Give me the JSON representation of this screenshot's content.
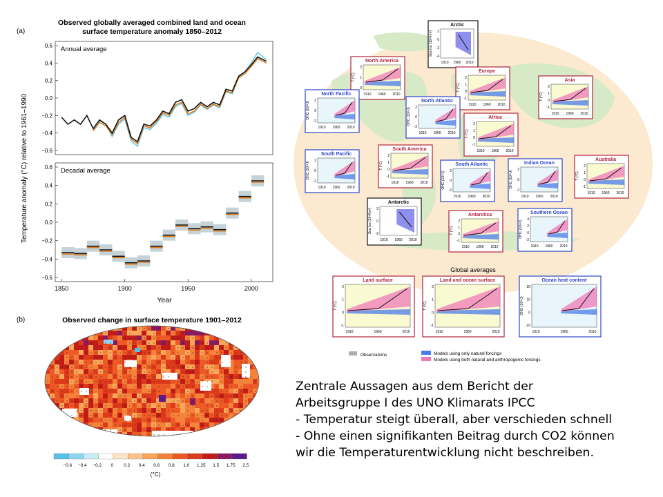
{
  "chart_data": [
    {
      "type": "line",
      "panel_label": "(a)",
      "title": "Observed globally averaged combined land and ocean surface temperature anomaly 1850–2012",
      "subpanels": [
        {
          "label": "Annual average",
          "ylim": [
            -0.6,
            0.6
          ],
          "series": [
            {
              "color": "#111111",
              "x": [
                1850,
                1855,
                1860,
                1865,
                1870,
                1875,
                1880,
                1885,
                1890,
                1895,
                1900,
                1905,
                1910,
                1915,
                1920,
                1925,
                1930,
                1935,
                1940,
                1945,
                1950,
                1955,
                1960,
                1965,
                1970,
                1975,
                1980,
                1985,
                1990,
                1995,
                2000,
                2005,
                2012
              ],
              "values": [
                -0.22,
                -0.3,
                -0.25,
                -0.3,
                -0.2,
                -0.35,
                -0.25,
                -0.3,
                -0.4,
                -0.25,
                -0.2,
                -0.45,
                -0.5,
                -0.3,
                -0.32,
                -0.25,
                -0.15,
                -0.18,
                -0.05,
                -0.02,
                -0.15,
                -0.12,
                -0.05,
                -0.1,
                -0.05,
                -0.08,
                0.1,
                0.08,
                0.25,
                0.3,
                0.38,
                0.47,
                0.42
              ]
            },
            {
              "color": "#e07b1a",
              "x": [
                1850,
                1855,
                1860,
                1865,
                1870,
                1875,
                1880,
                1885,
                1890,
                1895,
                1900,
                1905,
                1910,
                1915,
                1920,
                1925,
                1930,
                1935,
                1940,
                1945,
                1950,
                1955,
                1960,
                1965,
                1970,
                1975,
                1980,
                1985,
                1990,
                1995,
                2000,
                2005,
                2012
              ],
              "values": [
                null,
                null,
                null,
                null,
                null,
                -0.38,
                -0.28,
                -0.32,
                -0.42,
                -0.28,
                -0.22,
                -0.47,
                -0.52,
                -0.32,
                -0.34,
                -0.27,
                -0.17,
                -0.2,
                -0.08,
                -0.05,
                -0.18,
                -0.15,
                -0.07,
                -0.12,
                -0.07,
                -0.1,
                0.08,
                0.06,
                0.23,
                0.28,
                0.36,
                0.45,
                0.4
              ]
            },
            {
              "color": "#5bc8e8",
              "x": [
                1850,
                1855,
                1860,
                1865,
                1870,
                1875,
                1880,
                1885,
                1890,
                1895,
                1900,
                1905,
                1910,
                1915,
                1920,
                1925,
                1930,
                1935,
                1940,
                1945,
                1950,
                1955,
                1960,
                1965,
                1970,
                1975,
                1980,
                1985,
                1990,
                1995,
                2000,
                2005,
                2012
              ],
              "values": [
                null,
                null,
                null,
                null,
                null,
                -0.36,
                -0.26,
                -0.3,
                -0.44,
                -0.3,
                -0.24,
                -0.49,
                -0.55,
                -0.34,
                -0.36,
                -0.29,
                -0.19,
                -0.22,
                -0.1,
                -0.06,
                -0.2,
                -0.16,
                -0.08,
                -0.13,
                -0.08,
                -0.11,
                0.07,
                0.05,
                0.24,
                0.3,
                0.4,
                0.52,
                0.44
              ]
            }
          ]
        },
        {
          "label": "Decadal average",
          "ylim": [
            -0.6,
            0.6
          ],
          "decades": [
            1855,
            1865,
            1875,
            1885,
            1895,
            1905,
            1915,
            1925,
            1935,
            1945,
            1955,
            1965,
            1975,
            1985,
            1995,
            2005
          ],
          "values": [
            -0.33,
            -0.34,
            -0.26,
            -0.3,
            -0.37,
            -0.44,
            -0.42,
            -0.26,
            -0.14,
            -0.03,
            -0.07,
            -0.05,
            -0.08,
            0.1,
            0.28,
            0.45
          ]
        }
      ],
      "xticks": [
        1850,
        1900,
        1950,
        2000
      ],
      "yticks": [
        "0.6",
        "0.4",
        "0.2",
        "0.0",
        "−0.2",
        "−0.4",
        "−0.6"
      ],
      "xlabel": "Year",
      "ylabel": "Temperature anomaly (°C) relative to 1961–1990"
    },
    {
      "type": "heatmap",
      "panel_label": "(b)",
      "title": "Observed change in surface temperature 1901–2012",
      "colorbar_ticks": [
        "−0.6",
        "−0.4",
        "−0.2",
        "0",
        "0.2",
        "0.4",
        "0.6",
        "0.8",
        "1.0",
        "1.25",
        "1.5",
        "1.75",
        "2.5"
      ],
      "colorbar_colors": [
        "#55c0e8",
        "#8fd5ef",
        "#c7ebf7",
        "#ffffff",
        "#fde3c4",
        "#fbc38a",
        "#f9a55a",
        "#f5823a",
        "#ee5a26",
        "#dd3a1c",
        "#c21c18",
        "#8a1a60",
        "#5a1a8a"
      ],
      "unit": "(°C)"
    },
    {
      "type": "line",
      "regional_panels": [
        {
          "name": "Arctic",
          "yunit": "Sea Ice (10⁶Km²)",
          "yticks": [
            "2",
            "0",
            "-2",
            "-4"
          ],
          "xticks": [
            "1910",
            "1960",
            "2010"
          ]
        },
        {
          "name": "North America",
          "yunit": "T (°C)",
          "yticks": [
            "2",
            "1",
            "0"
          ],
          "xticks": [
            "1910",
            "1960",
            "2010"
          ]
        },
        {
          "name": "Europe",
          "yunit": "T (°C)",
          "yticks": [
            "2",
            "1",
            "0",
            "-1"
          ],
          "xticks": [
            "1910",
            "1960",
            "2010"
          ]
        },
        {
          "name": "Asia",
          "yunit": "T (°C)",
          "yticks": [
            "2",
            "1",
            "0",
            "-1"
          ],
          "xticks": [
            "1910",
            "1960",
            "2010"
          ]
        },
        {
          "name": "North Pacific",
          "yunit": "OHC (10²²J)",
          "yticks": [
            "2",
            "0",
            "-2"
          ],
          "xticks": [
            "1910",
            "1960",
            "2010"
          ]
        },
        {
          "name": "North Atlantic",
          "yunit": "OHC (10²²J)",
          "yticks": [
            "2",
            "0",
            "-2"
          ],
          "xticks": [
            "1910",
            "1960",
            "2010"
          ]
        },
        {
          "name": "Africa",
          "yunit": "T (°C)",
          "yticks": [
            "2",
            "1",
            "0",
            "-1"
          ],
          "xticks": [
            "1910",
            "1960",
            "2010"
          ]
        },
        {
          "name": "South Pacific",
          "yunit": "OHC (10²²J)",
          "yticks": [
            "2",
            "0",
            "-2"
          ],
          "xticks": [
            "1910",
            "1960",
            "2010"
          ]
        },
        {
          "name": "South America",
          "yunit": "T (°C)",
          "yticks": [
            "2",
            "1",
            "0",
            "-1"
          ],
          "xticks": [
            "1910",
            "1960",
            "2010"
          ]
        },
        {
          "name": "South Atlantic",
          "yunit": "OHC (10²²J)",
          "yticks": [
            "2",
            "0",
            "-2"
          ],
          "xticks": [
            "1910",
            "1960",
            "2010"
          ]
        },
        {
          "name": "Indian Ocean",
          "yunit": "OHC (10²²J)",
          "yticks": [
            "2",
            "0",
            "-2"
          ],
          "xticks": [
            "1910",
            "1960",
            "2010"
          ]
        },
        {
          "name": "Australia",
          "yunit": "T (°C)",
          "yticks": [
            "2",
            "1",
            "0",
            "-1"
          ],
          "xticks": [
            "1910",
            "1960",
            "2010"
          ]
        },
        {
          "name": "Antarctic",
          "yunit": "Sea Ice (10⁶Km²)",
          "yticks": [
            "2",
            "0",
            "-2"
          ],
          "xticks": [
            "1910",
            "1960",
            "2010"
          ]
        },
        {
          "name": "Antarctica",
          "yunit": "T (°C)",
          "yticks": [
            "2",
            "1",
            "0",
            "-1"
          ],
          "xticks": [
            "1910",
            "1960",
            "2010"
          ]
        },
        {
          "name": "Southern Ocean",
          "yunit": "OHC (10²²J)",
          "yticks": [
            "4",
            "2",
            "0",
            "-2"
          ],
          "xticks": [
            "1910",
            "1960",
            "2010"
          ]
        }
      ],
      "global_title": "Global averages",
      "global_panels": [
        {
          "name": "Land surface",
          "yunit": "T (°C)",
          "yticks": [
            "2",
            "1",
            "0",
            "-1"
          ],
          "xticks": [
            "1910",
            "1960",
            "2010"
          ]
        },
        {
          "name": "Land and ocean surface",
          "yunit": "T (°C)",
          "yticks": [
            "2",
            "1",
            "0",
            "-1"
          ],
          "xticks": [
            "1910",
            "1960",
            "2010"
          ]
        },
        {
          "name": "Ocean heat content",
          "yunit": "OHC (10²²J)",
          "yticks": [
            "20",
            "10",
            "0",
            "-10"
          ],
          "xticks": [
            "1910",
            "1960",
            "2010"
          ]
        }
      ],
      "legend": {
        "observations": "Observations",
        "natural": "Models using only natural forcings",
        "both": "Models using both natural and anthropogenic forcings"
      }
    }
  ],
  "caption": {
    "line1": "Zentrale Aussagen aus dem Bericht der",
    "line2": "Arbeitsgruppe I des UNO Klimarats IPCC",
    "line3": "- Temperatur steigt überall, aber verschieden schnell",
    "line4": "- Ohne einen signifikanten Beitrag durch CO2 können",
    "line5": "wir die Temperaturentwicklung nicht beschreiben."
  }
}
